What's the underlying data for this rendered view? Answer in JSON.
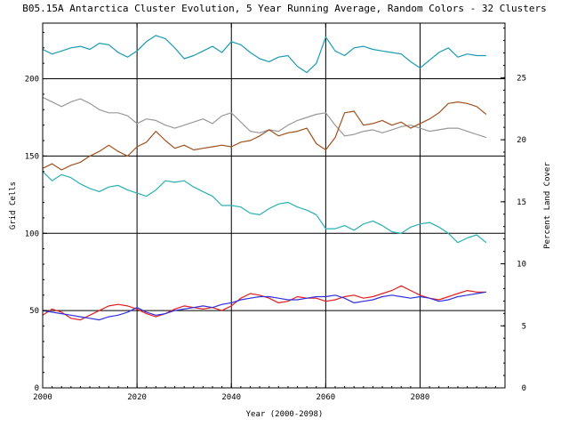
{
  "chart_data": {
    "type": "line",
    "title": "B05.15A Antarctica Cluster Evolution, 5 Year Running Average, Random Colors - 32 Clusters",
    "xlabel": "Year (2000-2098)",
    "ylabel": "Grid Cells",
    "y2label": "Percent Land Cover",
    "xlim": [
      2000,
      2098
    ],
    "ylim": [
      0,
      236
    ],
    "y2lim": [
      0,
      29.4
    ],
    "xticks": [
      2000,
      2020,
      2040,
      2060,
      2080
    ],
    "yticks": [
      0,
      50,
      100,
      150,
      200
    ],
    "y2ticks": [
      0,
      5,
      10,
      15,
      20,
      25
    ],
    "grid": true,
    "series": [
      {
        "name": "teal",
        "color": "#1a9bb0",
        "x": [
          2000,
          2002,
          2004,
          2006,
          2008,
          2010,
          2012,
          2014,
          2016,
          2018,
          2020,
          2022,
          2024,
          2026,
          2028,
          2030,
          2032,
          2034,
          2036,
          2038,
          2040,
          2042,
          2044,
          2046,
          2048,
          2050,
          2052,
          2054,
          2056,
          2058,
          2060,
          2062,
          2064,
          2066,
          2068,
          2070,
          2072,
          2074,
          2076,
          2078,
          2080,
          2082,
          2084,
          2086,
          2088,
          2090,
          2092,
          2094
        ],
        "values": [
          219,
          216,
          218,
          220,
          221,
          219,
          223,
          222,
          217,
          214,
          218,
          224,
          228,
          226,
          220,
          213,
          215,
          218,
          221,
          217,
          224,
          222,
          217,
          213,
          211,
          214,
          215,
          208,
          204,
          210,
          227,
          218,
          215,
          220,
          221,
          219,
          218,
          217,
          216,
          211,
          207,
          212,
          217,
          220,
          214,
          216,
          215,
          215
        ]
      },
      {
        "name": "gray",
        "color": "#999999",
        "x": [
          2000,
          2002,
          2004,
          2006,
          2008,
          2010,
          2012,
          2014,
          2016,
          2018,
          2020,
          2022,
          2024,
          2026,
          2028,
          2030,
          2032,
          2034,
          2036,
          2038,
          2040,
          2042,
          2044,
          2046,
          2048,
          2050,
          2052,
          2054,
          2056,
          2058,
          2060,
          2062,
          2064,
          2066,
          2068,
          2070,
          2072,
          2074,
          2076,
          2078,
          2080,
          2082,
          2084,
          2086,
          2088,
          2090,
          2092,
          2094
        ],
        "values": [
          188,
          185,
          182,
          185,
          187,
          184,
          180,
          178,
          178,
          176,
          171,
          174,
          173,
          170,
          168,
          170,
          172,
          174,
          171,
          176,
          178,
          172,
          166,
          165,
          167,
          166,
          170,
          173,
          175,
          177,
          178,
          170,
          163,
          164,
          166,
          167,
          165,
          167,
          169,
          170,
          168,
          166,
          167,
          168,
          168,
          166,
          164,
          162
        ]
      },
      {
        "name": "brown",
        "color": "#a0521e",
        "x": [
          2000,
          2002,
          2004,
          2006,
          2008,
          2010,
          2012,
          2014,
          2016,
          2018,
          2020,
          2022,
          2024,
          2026,
          2028,
          2030,
          2032,
          2034,
          2036,
          2038,
          2040,
          2042,
          2044,
          2046,
          2048,
          2050,
          2052,
          2054,
          2056,
          2058,
          2060,
          2062,
          2064,
          2066,
          2068,
          2070,
          2072,
          2074,
          2076,
          2078,
          2080,
          2082,
          2084,
          2086,
          2088,
          2090,
          2092,
          2094
        ],
        "values": [
          142,
          145,
          141,
          144,
          146,
          150,
          153,
          157,
          153,
          150,
          156,
          159,
          166,
          160,
          155,
          157,
          154,
          155,
          156,
          157,
          156,
          159,
          160,
          163,
          167,
          163,
          165,
          166,
          168,
          158,
          154,
          162,
          178,
          179,
          170,
          171,
          173,
          170,
          172,
          168,
          171,
          174,
          178,
          184,
          185,
          184,
          182,
          177
        ]
      },
      {
        "name": "cyan",
        "color": "#2ab0b0",
        "x": [
          2000,
          2002,
          2004,
          2006,
          2008,
          2010,
          2012,
          2014,
          2016,
          2018,
          2020,
          2022,
          2024,
          2026,
          2028,
          2030,
          2032,
          2034,
          2036,
          2038,
          2040,
          2042,
          2044,
          2046,
          2048,
          2050,
          2052,
          2054,
          2056,
          2058,
          2060,
          2062,
          2064,
          2066,
          2068,
          2070,
          2072,
          2074,
          2076,
          2078,
          2080,
          2082,
          2084,
          2086,
          2088,
          2090,
          2092,
          2094
        ],
        "values": [
          140,
          134,
          138,
          136,
          132,
          129,
          127,
          130,
          131,
          128,
          126,
          124,
          128,
          134,
          133,
          134,
          130,
          127,
          124,
          118,
          118,
          117,
          113,
          112,
          116,
          119,
          120,
          117,
          115,
          112,
          103,
          103,
          105,
          102,
          106,
          108,
          105,
          101,
          100,
          104,
          106,
          107,
          104,
          100,
          94,
          97,
          99,
          94
        ]
      },
      {
        "name": "red",
        "color": "#e02020",
        "x": [
          2000,
          2002,
          2004,
          2006,
          2008,
          2010,
          2012,
          2014,
          2016,
          2018,
          2020,
          2022,
          2024,
          2026,
          2028,
          2030,
          2032,
          2034,
          2036,
          2038,
          2040,
          2042,
          2044,
          2046,
          2048,
          2050,
          2052,
          2054,
          2056,
          2058,
          2060,
          2062,
          2064,
          2066,
          2068,
          2070,
          2072,
          2074,
          2076,
          2078,
          2080,
          2082,
          2084,
          2086,
          2088,
          2090,
          2092,
          2094
        ],
        "values": [
          47,
          51,
          49,
          45,
          44,
          47,
          50,
          53,
          54,
          53,
          51,
          48,
          46,
          48,
          51,
          53,
          52,
          51,
          52,
          50,
          53,
          58,
          61,
          60,
          58,
          55,
          56,
          59,
          58,
          58,
          56,
          57,
          59,
          60,
          58,
          59,
          61,
          63,
          66,
          63,
          60,
          58,
          57,
          59,
          61,
          63,
          62,
          62
        ]
      },
      {
        "name": "blue",
        "color": "#3030e0",
        "x": [
          2000,
          2002,
          2004,
          2006,
          2008,
          2010,
          2012,
          2014,
          2016,
          2018,
          2020,
          2022,
          2024,
          2026,
          2028,
          2030,
          2032,
          2034,
          2036,
          2038,
          2040,
          2042,
          2044,
          2046,
          2048,
          2050,
          2052,
          2054,
          2056,
          2058,
          2060,
          2062,
          2064,
          2066,
          2068,
          2070,
          2072,
          2074,
          2076,
          2078,
          2080,
          2082,
          2084,
          2086,
          2088,
          2090,
          2092,
          2094
        ],
        "values": [
          50,
          49,
          48,
          47,
          46,
          45,
          44,
          46,
          47,
          49,
          52,
          49,
          47,
          48,
          50,
          51,
          52,
          53,
          52,
          54,
          55,
          57,
          58,
          59,
          59,
          58,
          57,
          57,
          58,
          59,
          59,
          60,
          58,
          55,
          56,
          57,
          59,
          60,
          59,
          58,
          59,
          58,
          56,
          57,
          59,
          60,
          61,
          62
        ]
      }
    ]
  }
}
